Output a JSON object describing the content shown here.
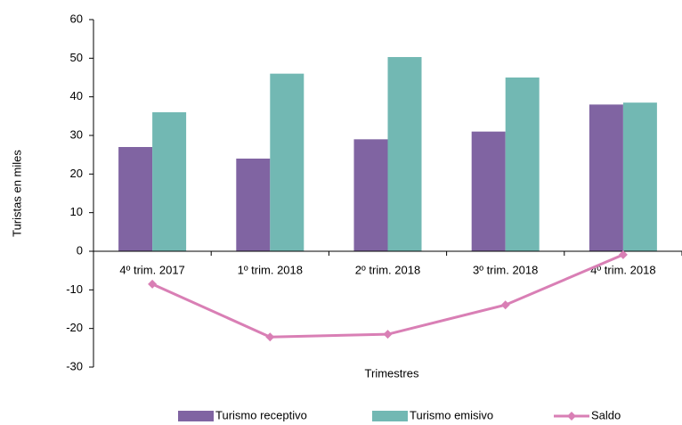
{
  "chart_data": {
    "type": "bar",
    "xlabel": "Trimestres",
    "ylabel": "Turistas en miles",
    "categories": [
      "4º trim. 2017",
      "1º trim. 2018",
      "2º trim. 2018",
      "3º trim. 2018",
      "4º trim. 2018"
    ],
    "series": [
      {
        "name": "Turismo receptivo",
        "color": "#8064a2",
        "type": "bar",
        "values": [
          27,
          24,
          29,
          31,
          38
        ]
      },
      {
        "name": "Turismo emisivo",
        "color": "#72b8b3",
        "type": "bar",
        "values": [
          36,
          46,
          50.3,
          45,
          38.5
        ]
      },
      {
        "name": "Saldo",
        "color": "#d97fb5",
        "type": "line",
        "values": [
          -8.5,
          -22.2,
          -21.5,
          -13.9,
          -0.9
        ]
      }
    ],
    "ylim": [
      -30,
      60
    ],
    "yticks": [
      -30,
      -20,
      -10,
      0,
      10,
      20,
      30,
      40,
      50,
      60
    ]
  }
}
